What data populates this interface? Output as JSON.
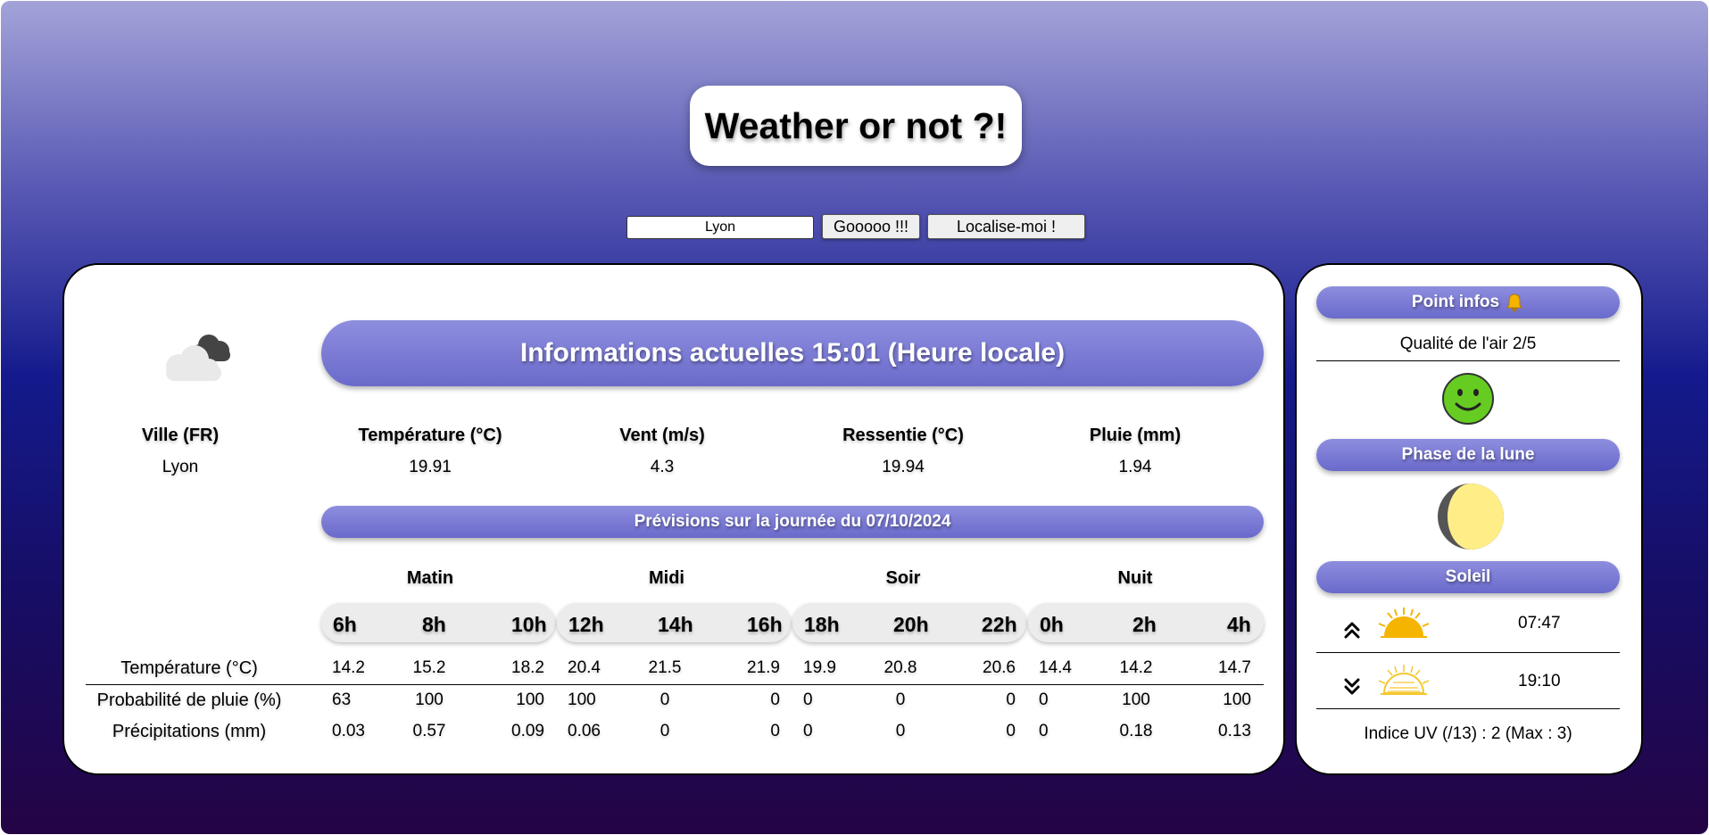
{
  "app": {
    "title": "Weather or not ?!"
  },
  "search": {
    "value": "Lyon",
    "go_label": "Gooooo !!!",
    "locate_label": "Localise-moi !"
  },
  "current": {
    "banner": "Informations actuelles 15:01 (Heure locale)",
    "weather_icon": "cloudy-icon",
    "columns": [
      {
        "label": "Ville (FR)",
        "value": "Lyon"
      },
      {
        "label": "Température (°C)",
        "value": "19.91"
      },
      {
        "label": "Vent (m/s)",
        "value": "4.3"
      },
      {
        "label": "Ressentie (°C)",
        "value": "19.94"
      },
      {
        "label": "Pluie (mm)",
        "value": "1.94"
      }
    ]
  },
  "forecast": {
    "banner": "Prévisions sur la journée du 07/10/2024",
    "periods": [
      {
        "label": "Matin",
        "hours": [
          "6h",
          "8h",
          "10h"
        ]
      },
      {
        "label": "Midi",
        "hours": [
          "12h",
          "14h",
          "16h"
        ]
      },
      {
        "label": "Soir",
        "hours": [
          "18h",
          "20h",
          "22h"
        ]
      },
      {
        "label": "Nuit",
        "hours": [
          "0h",
          "2h",
          "4h"
        ]
      }
    ],
    "rows": [
      {
        "label": "Température (°C)",
        "values": [
          "14.2",
          "15.2",
          "18.2",
          "20.4",
          "21.5",
          "21.9",
          "19.9",
          "20.8",
          "20.6",
          "14.4",
          "14.2",
          "14.7"
        ]
      },
      {
        "label": "Probabilité de pluie (%)",
        "values": [
          "63",
          "100",
          "100",
          "100",
          "0",
          "0",
          "0",
          "0",
          "0",
          "0",
          "100",
          "100"
        ]
      },
      {
        "label": "Précipitations (mm)",
        "values": [
          "0.03",
          "0.57",
          "0.09",
          "0.06",
          "0",
          "0",
          "0",
          "0",
          "0",
          "0",
          "0.18",
          "0.13"
        ]
      }
    ]
  },
  "side": {
    "infos_title": "Point infos",
    "infos_icon": "bell-icon",
    "air_quality": "Qualité de l'air 2/5",
    "air_quality_icon": "smiley-face-icon",
    "moon_title": "Phase de la lune",
    "moon_icon": "moon-phase-icon",
    "sun_title": "Soleil",
    "sunrise": "07:47",
    "sunset": "19:10",
    "uv": "Indice UV (/13) : 2 (Max : 3)"
  },
  "colors": {
    "accent": "#7474d4",
    "smiley": "#66cc22",
    "moon": "#ffee88",
    "sun": "#f5b400"
  }
}
